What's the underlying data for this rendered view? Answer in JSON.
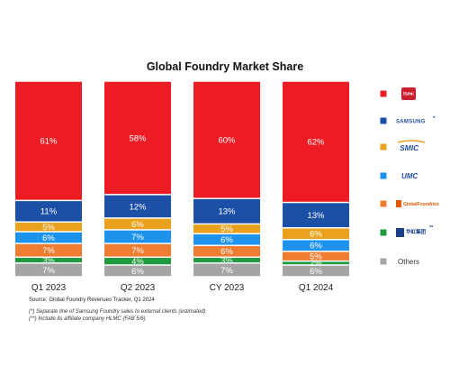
{
  "chart_data": {
    "type": "bar",
    "stacked": true,
    "percent": true,
    "title": "Global Foundry Market Share",
    "categories": [
      "Q1 2023",
      "Q2 2023",
      "CY 2023",
      "Q1 2024"
    ],
    "ylim": [
      0,
      100
    ],
    "series": [
      {
        "name": "Others",
        "color": "#a5a5a5",
        "labels": [
          "7%",
          "6%",
          "7%",
          "6%"
        ],
        "values": [
          7,
          6,
          7,
          6
        ]
      },
      {
        "name": "Hua Hong",
        "color": "#1f9a3e",
        "labels": [
          "3%",
          "4%",
          "3%",
          "2%"
        ],
        "values": [
          3,
          4,
          3,
          2
        ]
      },
      {
        "name": "GlobalFoundries",
        "color": "#ef7d31",
        "labels": [
          "7%",
          "7%",
          "6%",
          "5%"
        ],
        "values": [
          7,
          7,
          6,
          5
        ]
      },
      {
        "name": "UMC",
        "color": "#1e93ee",
        "labels": [
          "6%",
          "7%",
          "6%",
          "6%"
        ],
        "values": [
          6,
          7,
          6,
          6
        ]
      },
      {
        "name": "SMIC",
        "color": "#e9a11e",
        "labels": [
          "5%",
          "6%",
          "5%",
          "6%"
        ],
        "values": [
          5,
          6,
          5,
          6
        ]
      },
      {
        "name": "Samsung",
        "color": "#1c4fa6",
        "labels": [
          "11%",
          "12%",
          "13%",
          "13%"
        ],
        "values": [
          11,
          12,
          13,
          13
        ]
      },
      {
        "name": "TSMC",
        "color": "#ed1b24",
        "labels": [
          "61%",
          "58%",
          "60%",
          "62%"
        ],
        "values": [
          61,
          58,
          60,
          62
        ]
      }
    ],
    "legend": {
      "placement": "right",
      "items": [
        {
          "key": "tsmc",
          "color": "#ed1b24",
          "logo_text": "tsmc",
          "icon": "tsmc-logo-icon"
        },
        {
          "key": "samsung",
          "color": "#1c4fa6",
          "logo_text": "SAMSUNG",
          "icon": "samsung-logo-icon"
        },
        {
          "key": "smic",
          "color": "#e9a11e",
          "logo_text": "SMIC",
          "icon": "smic-logo-icon"
        },
        {
          "key": "umc",
          "color": "#1e93ee",
          "logo_text": "UMC",
          "icon": "umc-logo-icon"
        },
        {
          "key": "globalfoundries",
          "color": "#ef7d31",
          "logo_text": "GlobalFoundries",
          "icon": "globalfoundries-logo-icon"
        },
        {
          "key": "huahong",
          "color": "#1f9a3e",
          "logo_text": "华虹集团",
          "icon": "huahong-logo-icon"
        },
        {
          "key": "others",
          "color": "#a5a5a5",
          "label": "Others"
        }
      ]
    },
    "annotations": {
      "samsung_marker": "*",
      "huahong_marker": "**"
    },
    "source": "Source: Global Foundry Revenues Tracker, Q1 2024",
    "notes": [
      "(*) Separate line of Samsung Foundry sales to external clients (estimated)",
      "(**) Include its affiliate company HLMC (FAB 5/6)"
    ]
  }
}
